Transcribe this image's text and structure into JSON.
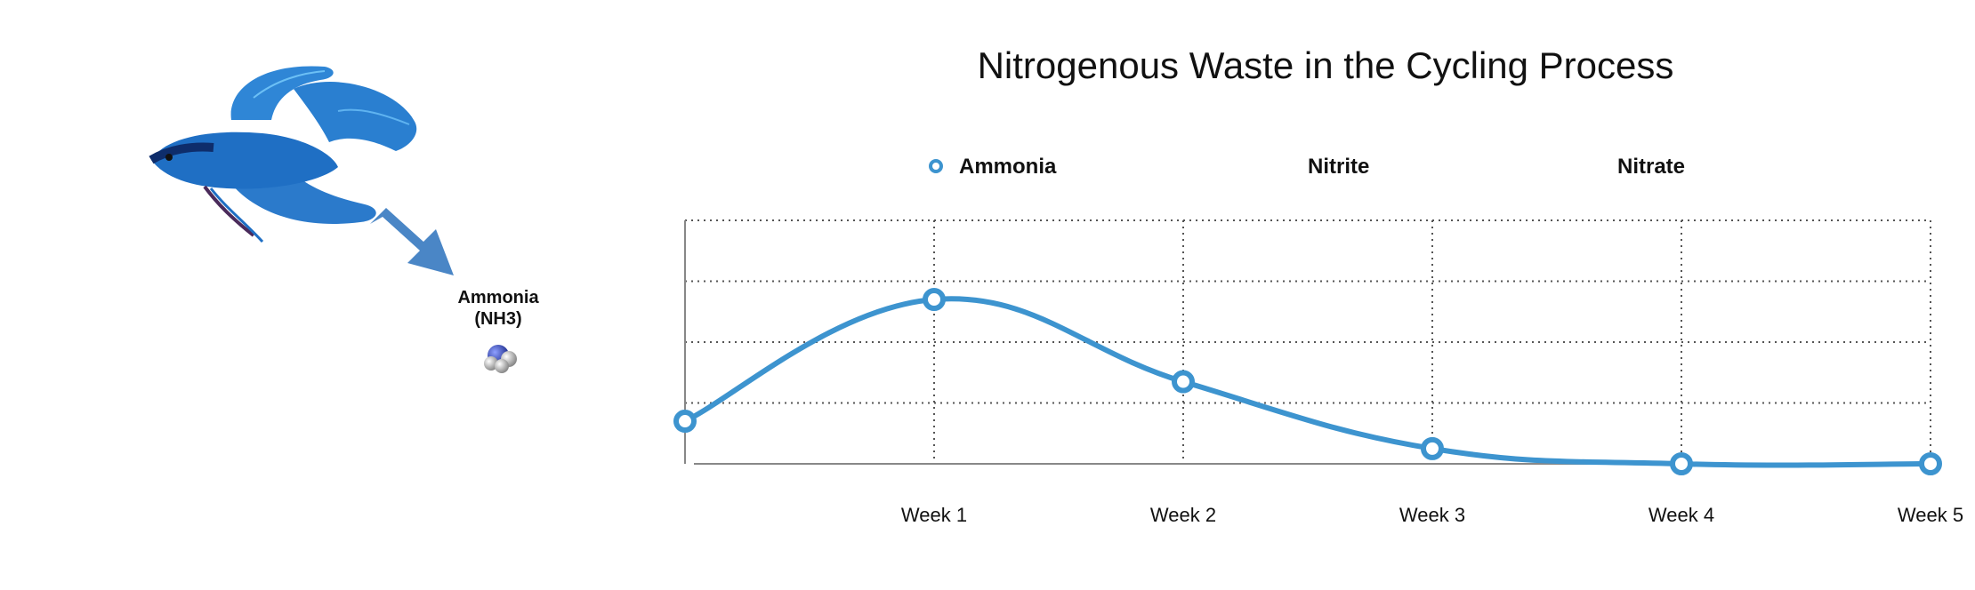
{
  "illustration": {
    "fish": "betta-fish-image",
    "arrow": "blue-arrow-icon",
    "molecule_label_line1": "Ammonia",
    "molecule_label_line2": "(NH3)",
    "molecule": "ammonia-molecule-icon"
  },
  "colors": {
    "series": "#3d94cf",
    "fish": "#1f6fc4",
    "arrow": "#4a86c6",
    "grid": "#555555"
  },
  "chart_data": {
    "type": "line",
    "title": "Nitrogenous Waste in the Cycling Process",
    "categories": [
      "",
      "Week 1",
      "Week 2",
      "Week 3",
      "Week 4",
      "Week 5"
    ],
    "legend": [
      "Ammonia",
      "Nitrite",
      "Nitrate"
    ],
    "series": [
      {
        "name": "Ammonia",
        "values": [
          0.7,
          2.7,
          1.35,
          0.25,
          0.0,
          0.0
        ]
      }
    ],
    "ylim": [
      0,
      4
    ],
    "grid": true,
    "legend_position": "top"
  }
}
